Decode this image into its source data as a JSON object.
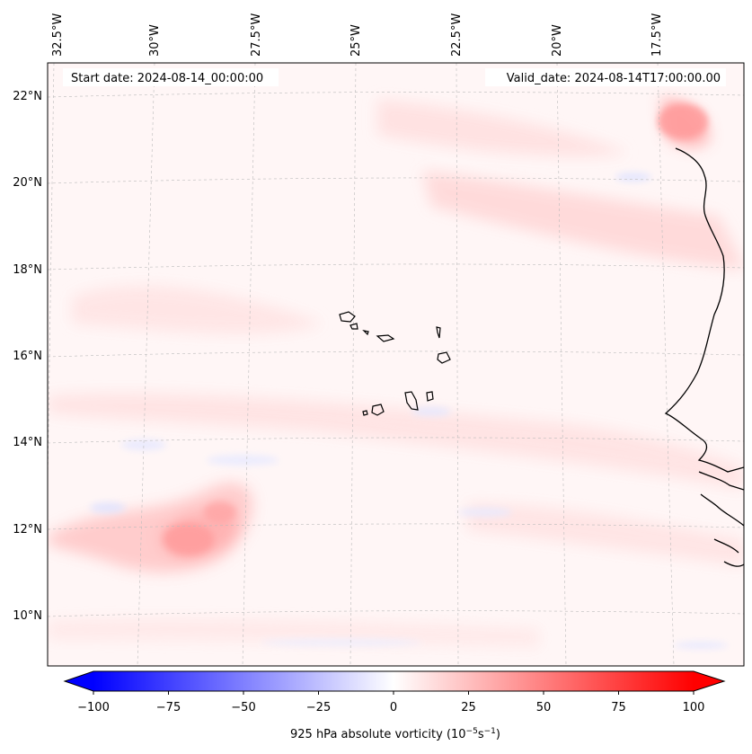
{
  "header": {
    "start_date": "Start date: 2024-08-14_00:00:00",
    "valid_date": "Valid_date: 2024-08-14T17:00:00.00"
  },
  "axes": {
    "longitude_labels": [
      "32.5°W",
      "30°W",
      "27.5°W",
      "25°W",
      "22.5°W",
      "20°W",
      "17.5°W"
    ],
    "latitude_labels": [
      "22°N",
      "20°N",
      "18°N",
      "16°N",
      "14°N",
      "12°N",
      "10°N"
    ]
  },
  "colorbar": {
    "label_prefix": "925 hPa absolute vorticity (10",
    "label_exp1": "−5",
    "label_mid": "s",
    "label_exp2": "−1",
    "label_suffix": ")",
    "ticks": [
      "−100",
      "−75",
      "−50",
      "−25",
      "0",
      "25",
      "50",
      "75",
      "100"
    ],
    "min": -100,
    "max": 100,
    "colors": {
      "negative": "#0000ff",
      "zero": "#ffffff",
      "positive": "#ff0000"
    }
  },
  "map": {
    "background_color": "#fff6f6",
    "features": [
      "Cape Verde Islands",
      "West African coastline"
    ]
  }
}
